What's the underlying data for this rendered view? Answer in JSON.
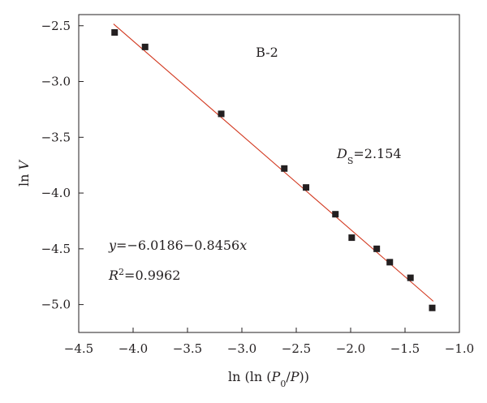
{
  "chart_data": {
    "type": "scatter",
    "title": "",
    "sample_label": "B-2",
    "xlabel": "ln(ln(P0/P))",
    "ylabel": "ln V",
    "xlim": [
      -4.5,
      -1.0
    ],
    "ylim": [
      -5.25,
      -2.4
    ],
    "x_ticks": [
      -4.5,
      -4.0,
      -3.5,
      -3.0,
      -2.5,
      -2.0,
      -1.5,
      -1.0
    ],
    "x_tick_labels": [
      "−4.5",
      "−4.0",
      "−3.5",
      "−3.0",
      "−2.5",
      "−2.0",
      "−1.5",
      "−1.0"
    ],
    "y_ticks": [
      -5.0,
      -4.5,
      -4.0,
      -3.5,
      -3.0,
      -2.5
    ],
    "y_tick_labels": [
      "−5.0",
      "−4.5",
      "−4.0",
      "−3.5",
      "−3.0",
      "−2.5"
    ],
    "grid": false,
    "points": [
      {
        "x": -4.17,
        "y": -2.56
      },
      {
        "x": -3.89,
        "y": -2.69
      },
      {
        "x": -3.19,
        "y": -3.29
      },
      {
        "x": -2.61,
        "y": -3.78
      },
      {
        "x": -2.41,
        "y": -3.95
      },
      {
        "x": -2.14,
        "y": -4.19
      },
      {
        "x": -1.99,
        "y": -4.4
      },
      {
        "x": -1.76,
        "y": -4.5
      },
      {
        "x": -1.64,
        "y": -4.62
      },
      {
        "x": -1.45,
        "y": -4.76
      },
      {
        "x": -1.25,
        "y": -5.03
      }
    ],
    "fit": {
      "intercept": -6.0186,
      "slope": -0.8456,
      "x_range": [
        -4.18,
        -1.24
      ],
      "color": "#d2371e",
      "equation_text": "y=−6.0186−0.8456x",
      "r2_text": "R2=0.9962"
    },
    "fractal_dimension_text": "DS=2.154",
    "marker_color": "#231f20"
  }
}
